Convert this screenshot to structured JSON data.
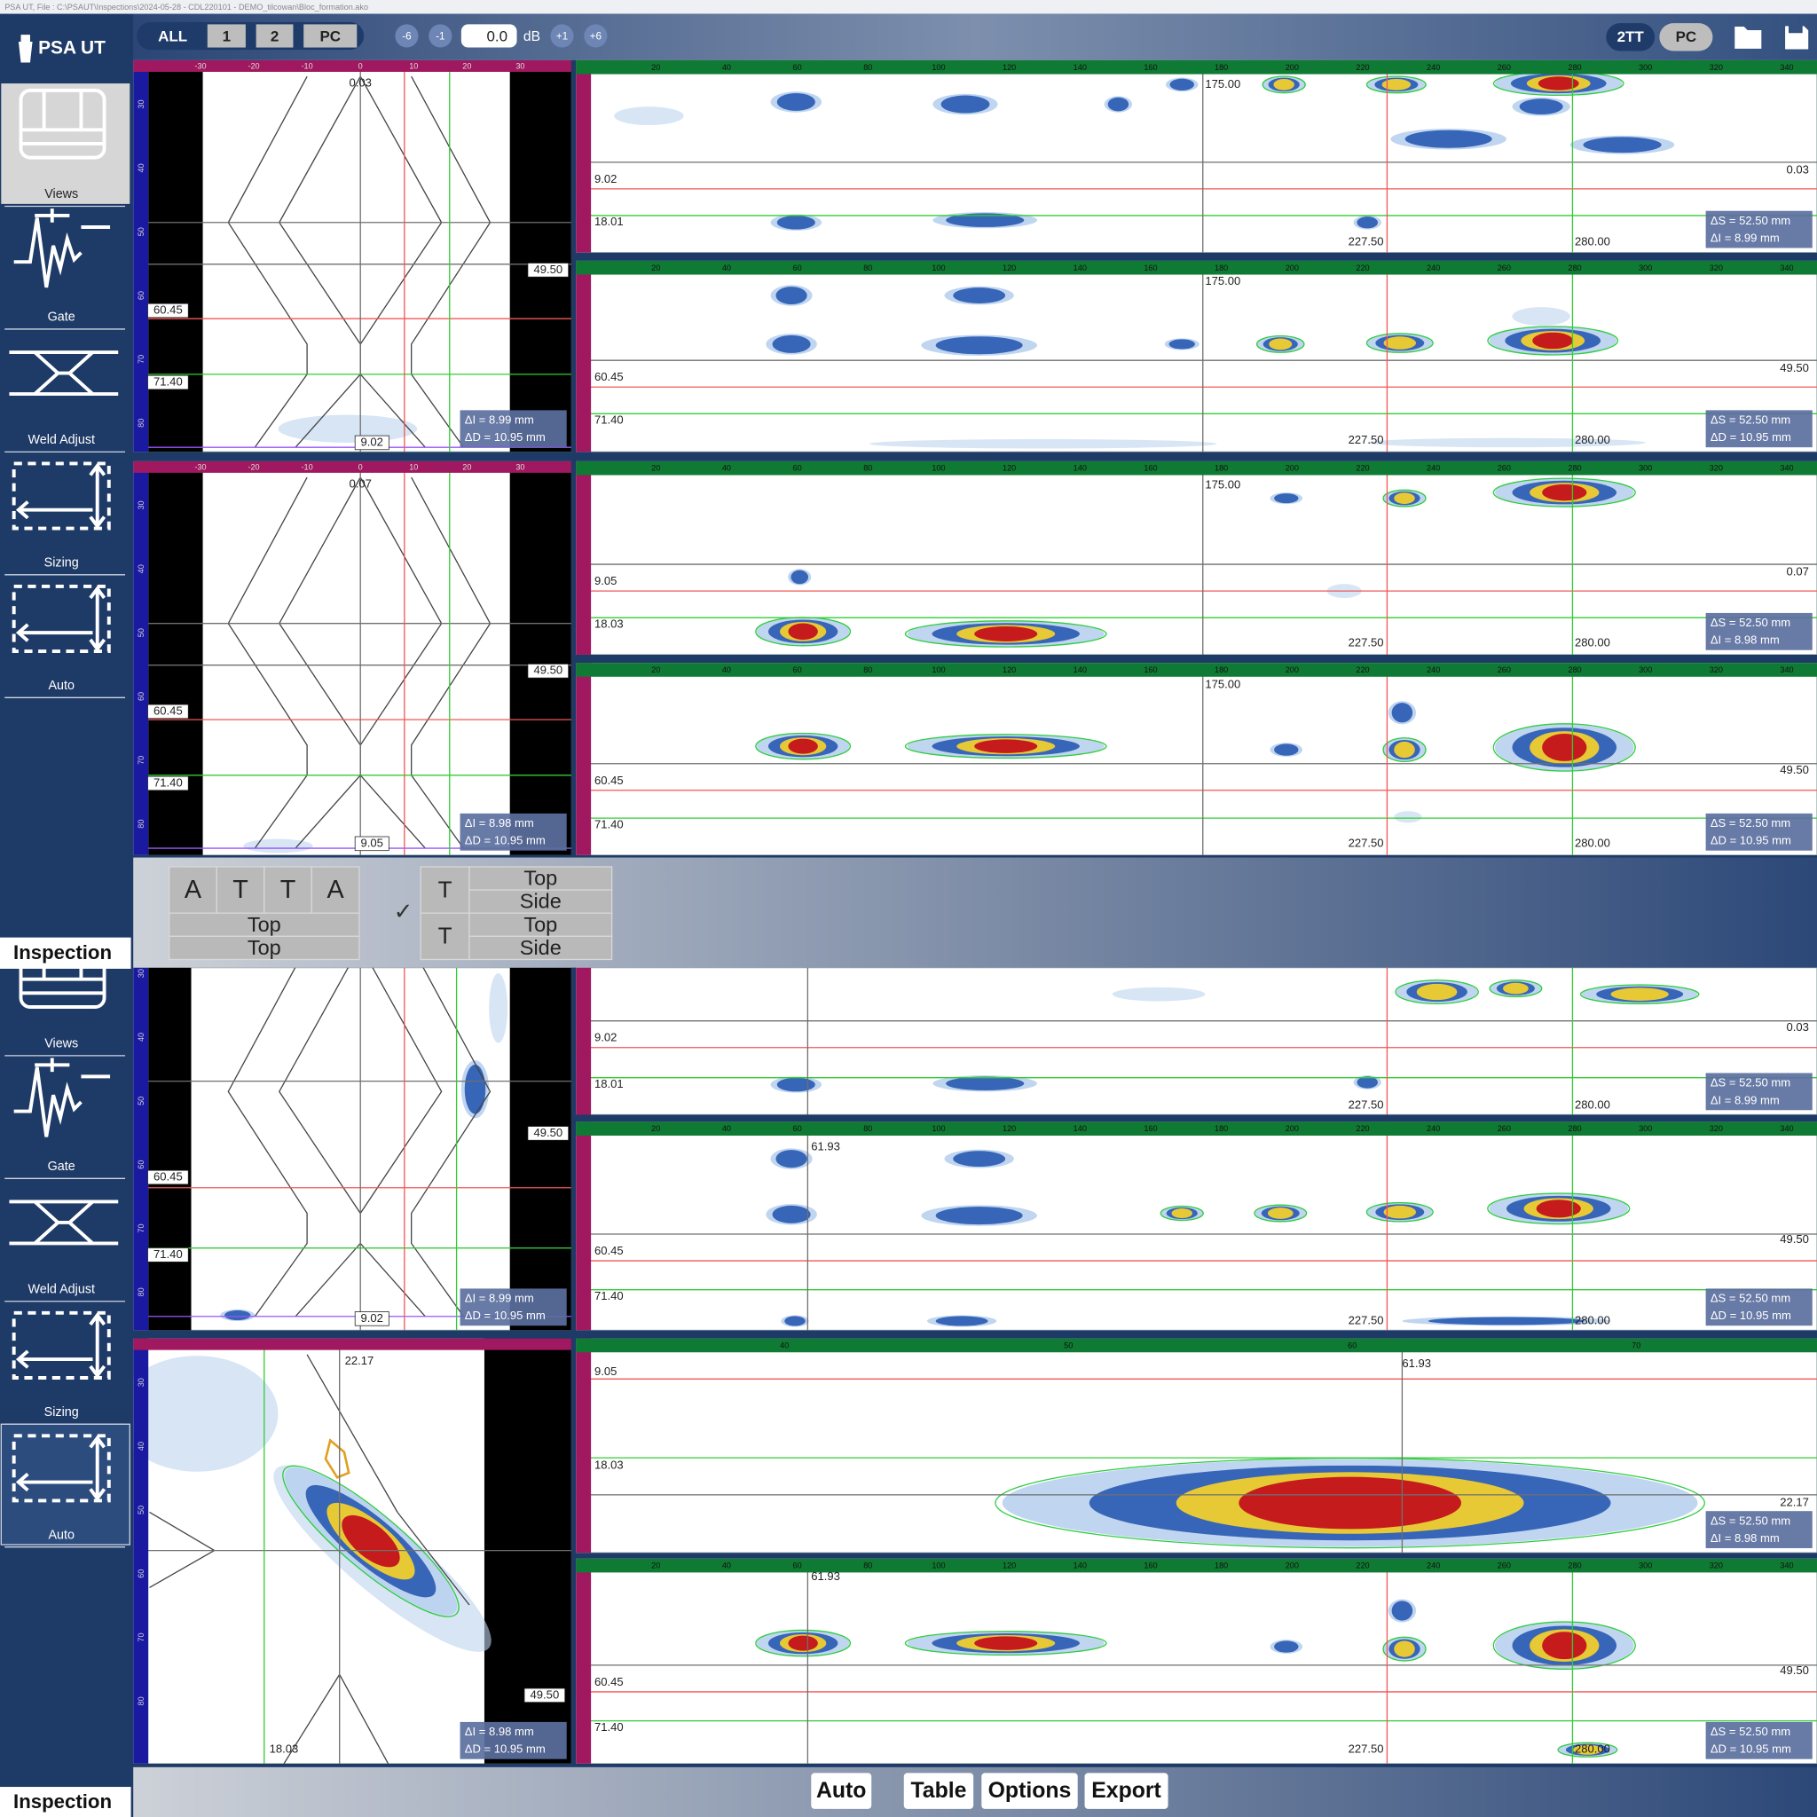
{
  "title_bar": "PSA UT, File : C:\\PSAUT\\Inspections\\2024-05-28 - CDL220101 - DEMO_tilcowan\\Bloc_formation.ako",
  "toolbar": {
    "views": [
      "ALL",
      "1",
      "2",
      "PC"
    ],
    "gain_down": [
      "-6",
      "-1"
    ],
    "gain": "0.0",
    "gain_unit": "dB",
    "gain_up": [
      "+1",
      "+6"
    ],
    "mode": [
      "2TT",
      "PC"
    ]
  },
  "sidebar": {
    "logo": "PSA UT",
    "tools": [
      "Views",
      "Gate",
      "Weld Adjust",
      "Sizing",
      "Auto"
    ],
    "tab": "Inspection"
  },
  "layout_config": {
    "left_top": [
      "A",
      "T",
      "T",
      "A"
    ],
    "left_rows": [
      "Top",
      "Top"
    ],
    "check": "✓",
    "right": [
      {
        "probe": "T",
        "views": [
          "Top",
          "Side"
        ]
      },
      {
        "probe": "T",
        "views": [
          "Top",
          "Side"
        ]
      }
    ]
  },
  "axes": {
    "side_ticks": [
      -30,
      -20,
      -10,
      0,
      10,
      20,
      30
    ],
    "depth_ticks": [
      30,
      40,
      50,
      60,
      70,
      80
    ],
    "scan_ticks": [
      20,
      40,
      60,
      80,
      100,
      120,
      140,
      160,
      180,
      200,
      220,
      240,
      260,
      280,
      300,
      320,
      340
    ],
    "zoom_ticks": [
      40,
      50,
      60,
      70
    ]
  },
  "panels": [
    {
      "labels": [
        "0.03",
        "49.50",
        "60.45",
        "71.40",
        "9.02"
      ],
      "readout": [
        "ΔI = 8.99 mm",
        "ΔD = 10.95 mm"
      ]
    },
    {
      "labels": [
        "0.07",
        "49.50",
        "60.45",
        "71.40",
        "9.05"
      ],
      "readout": [
        "ΔI = 8.98 mm",
        "ΔD = 10.95 mm"
      ]
    },
    {
      "labels": [
        "175.00",
        "9.02",
        "18.01",
        "0.03",
        "227.50",
        "280.00"
      ],
      "readout": [
        "ΔS = 52.50 mm",
        "ΔI = 8.99 mm"
      ]
    },
    {
      "labels": [
        "175.00",
        "60.45",
        "71.40",
        "49.50",
        "227.50",
        "280.00"
      ],
      "readout": [
        "ΔS = 52.50 mm",
        "ΔD = 10.95 mm"
      ]
    },
    {
      "labels": [
        "175.00",
        "9.05",
        "18.03",
        "0.07",
        "227.50",
        "280.00"
      ],
      "readout": [
        "ΔS = 52.50 mm",
        "ΔI = 8.98 mm"
      ]
    },
    {
      "labels": [
        "175.00",
        "60.45",
        "71.40",
        "49.50",
        "227.50",
        "280.00"
      ],
      "readout": [
        "ΔS = 52.50 mm",
        "ΔD = 10.95 mm"
      ]
    },
    {
      "labels": [
        "49.50",
        "60.45",
        "71.40",
        "9.02"
      ],
      "readout": [
        "ΔI = 8.99 mm",
        "ΔD = 10.95 mm"
      ]
    },
    {
      "labels": [
        "22.17",
        "18.03",
        "49.50"
      ],
      "readout": [
        "ΔI = 8.98 mm",
        "ΔD = 10.95 mm"
      ]
    },
    {
      "labels": [
        "9.02",
        "18.01",
        "0.03",
        "227.50",
        "280.00"
      ],
      "readout": [
        "ΔS = 52.50 mm",
        "ΔI = 8.99 mm"
      ]
    },
    {
      "labels": [
        "61.93",
        "60.45",
        "71.40",
        "49.50",
        "227.50",
        "280.00"
      ],
      "readout": [
        "ΔS = 52.50 mm",
        "ΔD = 10.95 mm"
      ]
    },
    {
      "labels": [
        "9.05",
        "18.03",
        "61.93",
        "22.17"
      ],
      "readout": [
        "ΔS = 52.50 mm",
        "ΔI = 8.98 mm"
      ]
    },
    {
      "labels": [
        "61.93",
        "60.45",
        "71.40",
        "49.50",
        "227.50",
        "280.00"
      ],
      "readout": [
        "ΔS = 52.50 mm",
        "ΔD = 10.95 mm"
      ]
    }
  ],
  "footer": [
    "Auto",
    "Table",
    "Options",
    "Export"
  ]
}
